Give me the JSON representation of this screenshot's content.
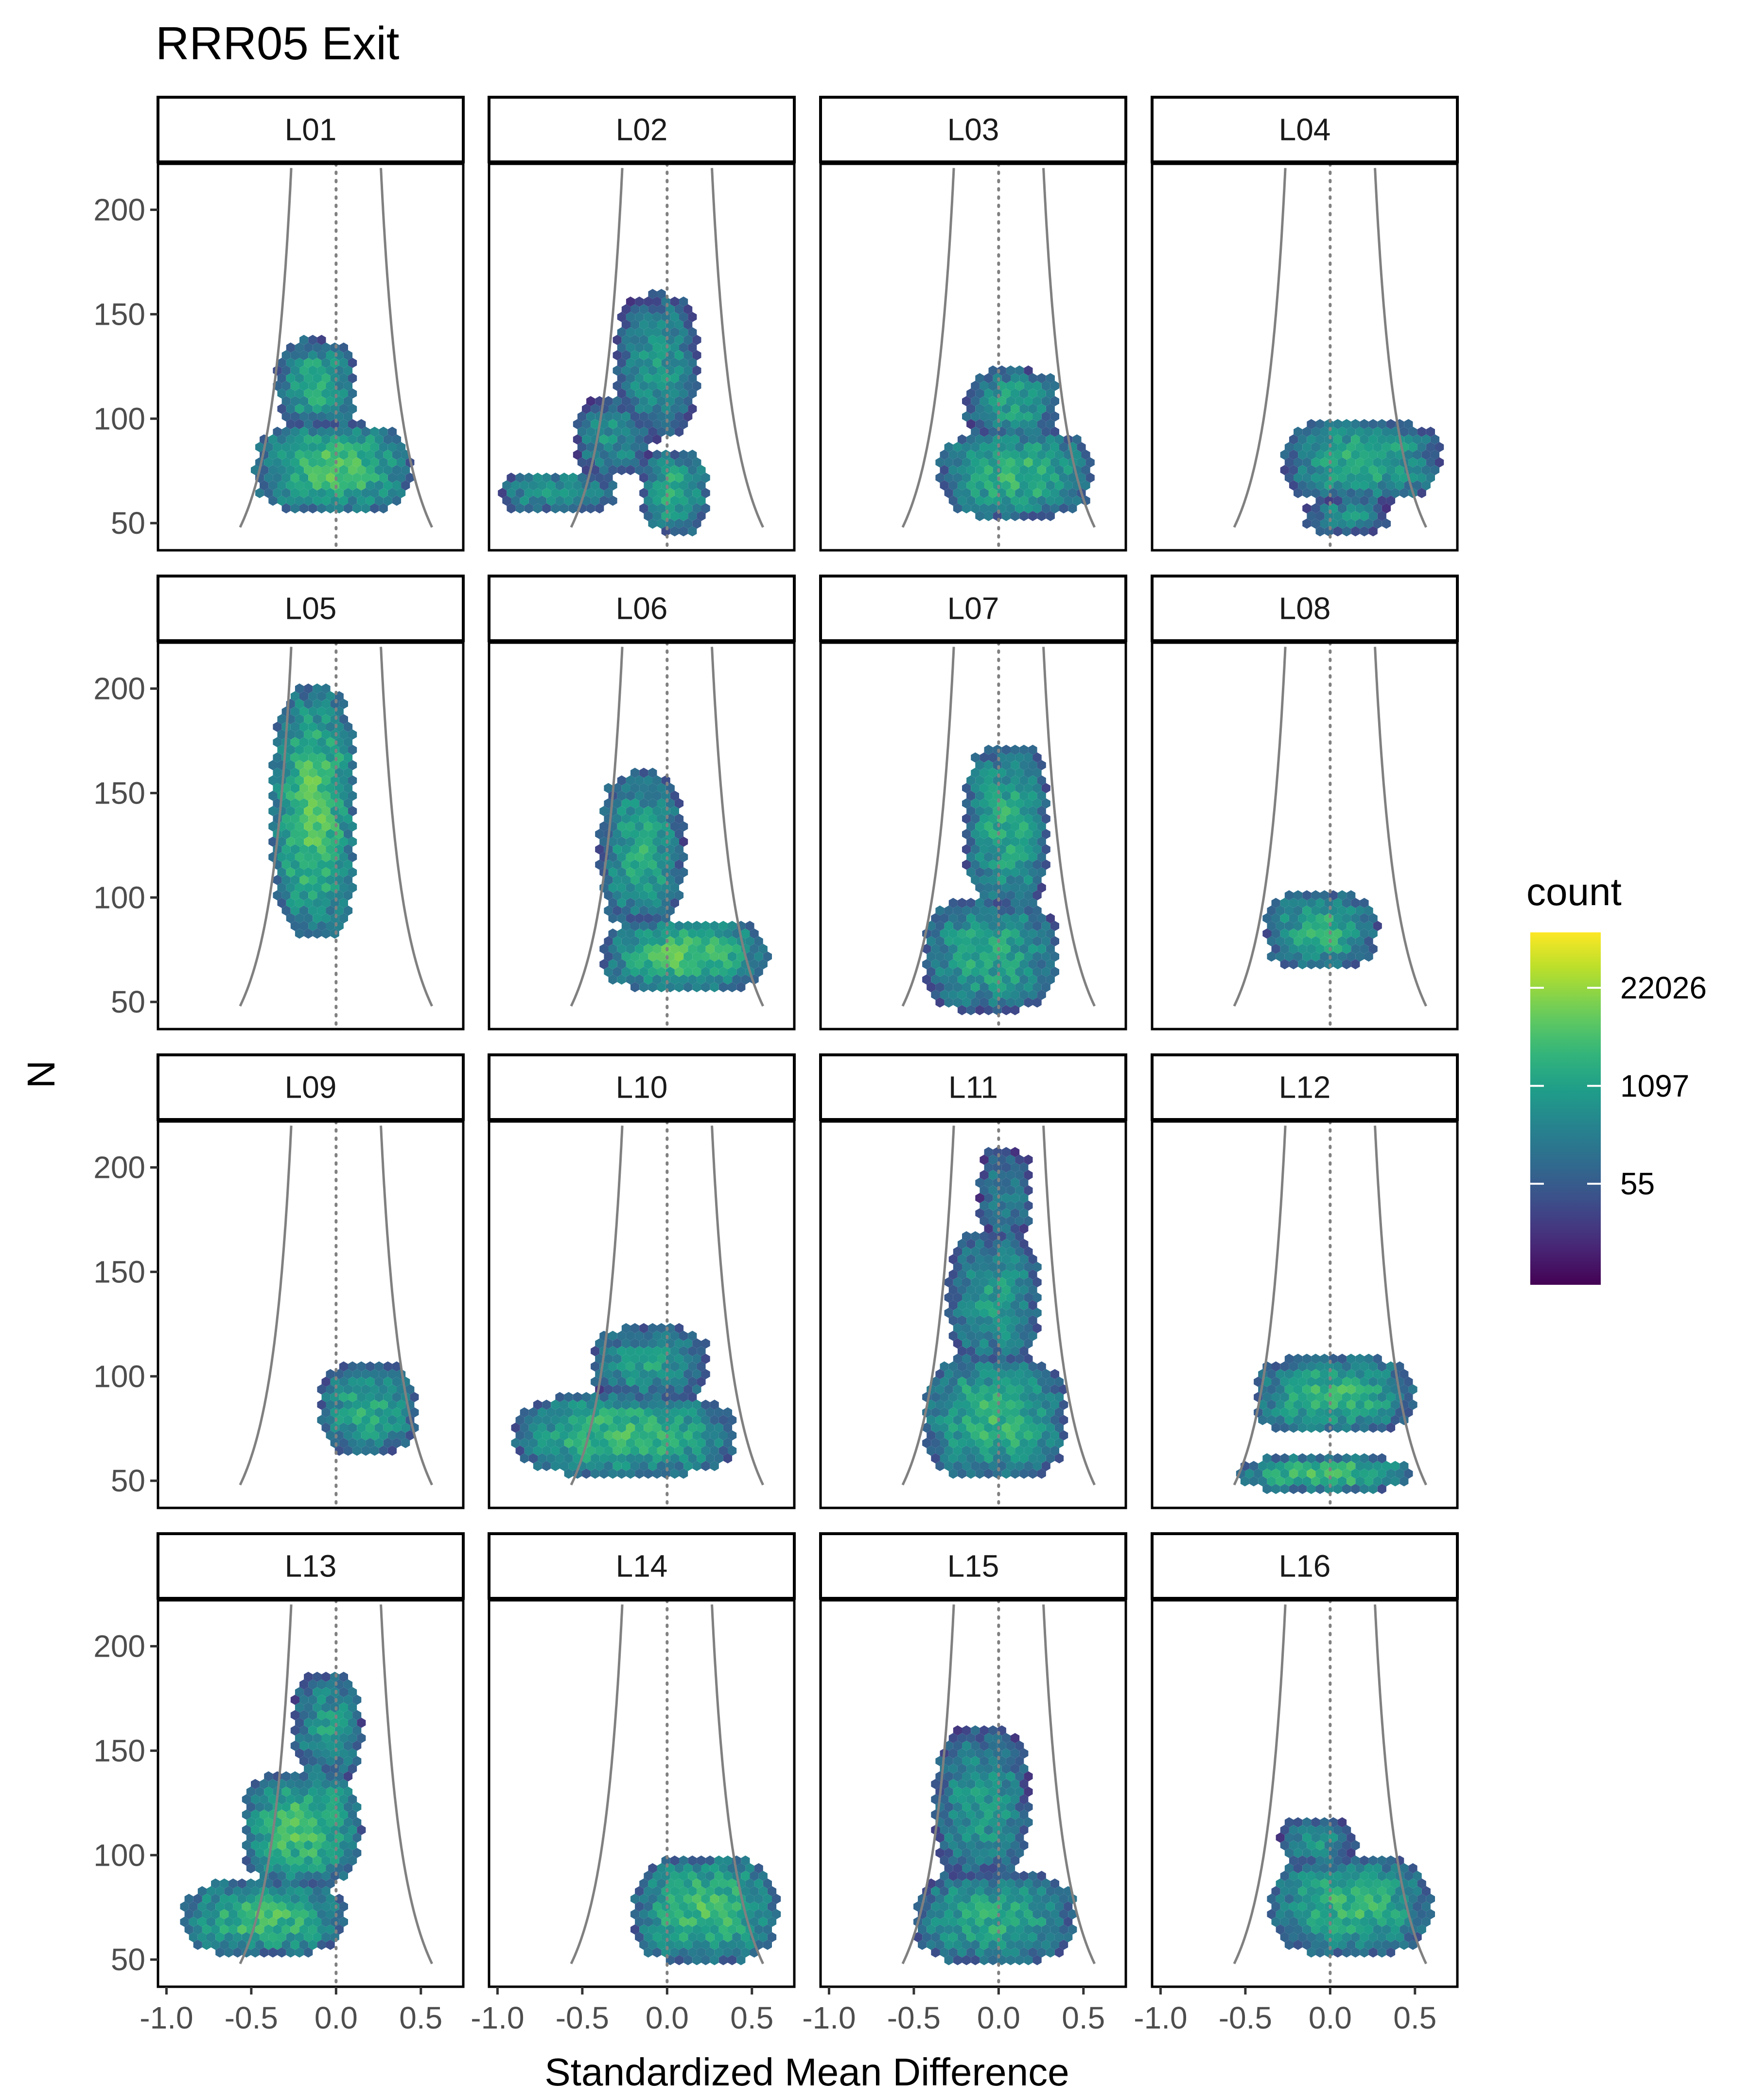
{
  "chart_data": {
    "type": "hexbin",
    "title": "RRR05 Exit",
    "xlabel": "Standardized Mean Difference",
    "ylabel": "N",
    "xlim": [
      -1.05,
      0.75
    ],
    "ylim": [
      37,
      222
    ],
    "x_ticks": [
      -1.0,
      -0.5,
      0.0,
      0.5
    ],
    "x_tick_labels": [
      "-1.0",
      "-0.5",
      "0.0",
      "0.5"
    ],
    "y_ticks": [
      50,
      100,
      150,
      200
    ],
    "y_tick_labels": [
      "50",
      "100",
      "150",
      "200"
    ],
    "reference_line_x": 0,
    "funnel": {
      "note": "gray curves x = ±1.96·sqrt(4/N)"
    },
    "grid": false,
    "legend": {
      "title": "count",
      "position": "right",
      "scale": "log",
      "breaks": [
        55,
        1097,
        22026
      ],
      "labels": [
        "55",
        "1097",
        "22026"
      ],
      "colors": [
        "#440154",
        "#3b528b",
        "#21908c",
        "#5dc863",
        "#fde725"
      ]
    },
    "panels": [
      {
        "label": "L01",
        "regions": [
          {
            "x0": -0.48,
            "x1": 0.45,
            "y0": 55,
            "y1": 98,
            "lvl": 0.7
          },
          {
            "x0": -0.35,
            "x1": 0.12,
            "y0": 95,
            "y1": 138,
            "lvl": 0.62
          }
        ]
      },
      {
        "label": "L02",
        "regions": [
          {
            "x0": -0.3,
            "x1": 0.18,
            "y0": 90,
            "y1": 160,
            "lvl": 0.55
          },
          {
            "x0": -0.15,
            "x1": 0.25,
            "y0": 45,
            "y1": 85,
            "lvl": 0.62
          },
          {
            "x0": -1.0,
            "x1": -0.3,
            "y0": 55,
            "y1": 75,
            "lvl": 0.55
          },
          {
            "x0": -0.55,
            "x1": -0.1,
            "y0": 72,
            "y1": 110,
            "lvl": 0.5
          }
        ]
      },
      {
        "label": "L03",
        "regions": [
          {
            "x0": -0.35,
            "x1": 0.55,
            "y0": 52,
            "y1": 95,
            "lvl": 0.65
          },
          {
            "x0": -0.2,
            "x1": 0.35,
            "y0": 92,
            "y1": 124,
            "lvl": 0.58
          }
        ]
      },
      {
        "label": "L04",
        "regions": [
          {
            "x0": -0.28,
            "x1": 0.65,
            "y0": 60,
            "y1": 100,
            "lvl": 0.62
          },
          {
            "x0": -0.15,
            "x1": 0.35,
            "y0": 45,
            "y1": 62,
            "lvl": 0.5
          }
        ]
      },
      {
        "label": "L05",
        "regions": [
          {
            "x0": -0.38,
            "x1": 0.12,
            "y0": 80,
            "y1": 202,
            "lvl": 0.72
          }
        ]
      },
      {
        "label": "L06",
        "regions": [
          {
            "x0": -0.4,
            "x1": 0.1,
            "y0": 85,
            "y1": 160,
            "lvl": 0.6
          },
          {
            "x0": -0.38,
            "x1": 0.6,
            "y0": 55,
            "y1": 90,
            "lvl": 0.7
          }
        ]
      },
      {
        "label": "L07",
        "regions": [
          {
            "x0": -0.2,
            "x1": 0.3,
            "y0": 95,
            "y1": 174,
            "lvl": 0.62
          },
          {
            "x0": -0.45,
            "x1": 0.35,
            "y0": 45,
            "y1": 100,
            "lvl": 0.6
          }
        ]
      },
      {
        "label": "L08",
        "regions": [
          {
            "x0": -0.38,
            "x1": 0.28,
            "y0": 65,
            "y1": 103,
            "lvl": 0.62
          }
        ]
      },
      {
        "label": "L09",
        "regions": [
          {
            "x0": -0.1,
            "x1": 0.48,
            "y0": 62,
            "y1": 107,
            "lvl": 0.6
          }
        ]
      },
      {
        "label": "L10",
        "regions": [
          {
            "x0": -0.9,
            "x1": 0.4,
            "y0": 52,
            "y1": 92,
            "lvl": 0.68
          },
          {
            "x0": -0.45,
            "x1": 0.25,
            "y0": 88,
            "y1": 124,
            "lvl": 0.55
          }
        ]
      },
      {
        "label": "L11",
        "regions": [
          {
            "x0": -0.45,
            "x1": 0.4,
            "y0": 50,
            "y1": 110,
            "lvl": 0.65
          },
          {
            "x0": -0.3,
            "x1": 0.25,
            "y0": 105,
            "y1": 170,
            "lvl": 0.55
          },
          {
            "x0": -0.12,
            "x1": 0.2,
            "y0": 165,
            "y1": 210,
            "lvl": 0.45
          }
        ]
      },
      {
        "label": "L12",
        "regions": [
          {
            "x0": -0.45,
            "x1": 0.5,
            "y0": 72,
            "y1": 110,
            "lvl": 0.65
          },
          {
            "x0": -0.55,
            "x1": 0.48,
            "y0": 45,
            "y1": 62,
            "lvl": 0.7
          }
        ]
      },
      {
        "label": "L13",
        "regions": [
          {
            "x0": -0.9,
            "x1": 0.05,
            "y0": 52,
            "y1": 88,
            "lvl": 0.68
          },
          {
            "x0": -0.55,
            "x1": 0.15,
            "y0": 85,
            "y1": 140,
            "lvl": 0.7
          },
          {
            "x0": -0.25,
            "x1": 0.15,
            "y0": 135,
            "y1": 188,
            "lvl": 0.55
          }
        ]
      },
      {
        "label": "L14",
        "regions": [
          {
            "x0": -0.2,
            "x1": 0.65,
            "y0": 48,
            "y1": 100,
            "lvl": 0.68
          }
        ]
      },
      {
        "label": "L15",
        "regions": [
          {
            "x0": -0.5,
            "x1": 0.45,
            "y0": 48,
            "y1": 92,
            "lvl": 0.62
          },
          {
            "x0": -0.38,
            "x1": 0.18,
            "y0": 88,
            "y1": 162,
            "lvl": 0.55
          }
        ]
      },
      {
        "label": "L16",
        "regions": [
          {
            "x0": -0.35,
            "x1": 0.6,
            "y0": 52,
            "y1": 100,
            "lvl": 0.65
          },
          {
            "x0": -0.3,
            "x1": 0.15,
            "y0": 95,
            "y1": 118,
            "lvl": 0.52
          }
        ]
      }
    ]
  }
}
